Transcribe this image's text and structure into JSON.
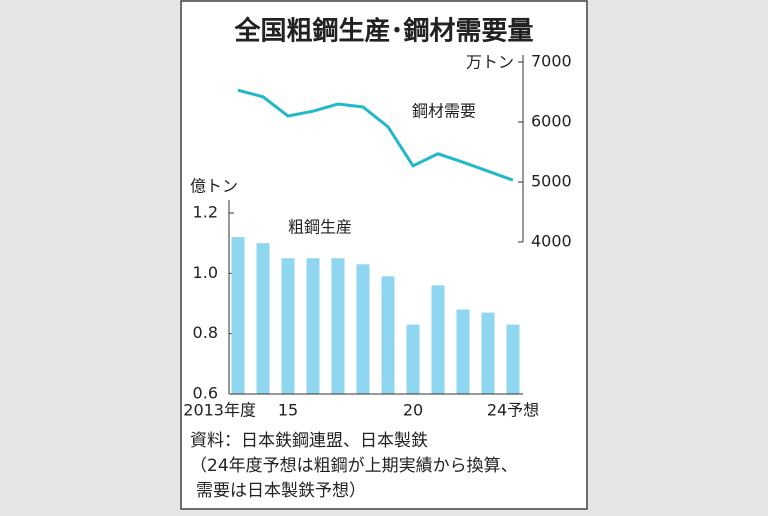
{
  "title": "全国粗鋼生産･鋼材需要量",
  "chart_data": [
    {
      "type": "bar",
      "y_label": "億トン",
      "annotation": "粗鋼生産",
      "color": "#8fd6f0",
      "categories": [
        "2013年度",
        null,
        "15",
        null,
        null,
        null,
        null,
        "20",
        null,
        null,
        null,
        "24予想"
      ],
      "values": [
        1.12,
        1.1,
        1.05,
        1.05,
        1.05,
        1.03,
        0.99,
        0.83,
        0.96,
        0.88,
        0.87,
        0.83
      ],
      "ylim": [
        0.6,
        1.2
      ],
      "yticks": [
        0.6,
        0.8,
        {
          "value": 1,
          "label": "1.0"
        },
        1.2
      ]
    },
    {
      "type": "line",
      "y_label": "万トン",
      "annotation": "鋼材需要",
      "color": "#22b8c8",
      "values": [
        6530,
        6420,
        6100,
        6180,
        6300,
        6250,
        5920,
        5270,
        5470,
        5330,
        5180,
        5030
      ],
      "ylim": [
        4000,
        7000
      ],
      "yticks": [
        4000,
        5000,
        6000,
        7000
      ]
    }
  ],
  "notes": [
    "資料：日本鉄鋼連盟、日本製鉄",
    "（24年度予想は粗鋼が上期実績から換算、",
    "需要は日本製鉄予想）"
  ]
}
